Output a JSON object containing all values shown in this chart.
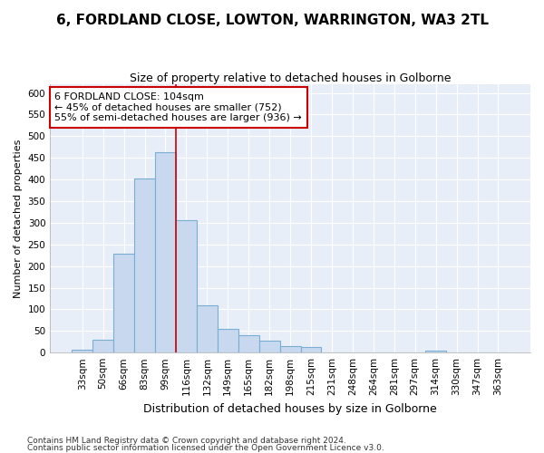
{
  "title": "6, FORDLAND CLOSE, LOWTON, WARRINGTON, WA3 2TL",
  "subtitle": "Size of property relative to detached houses in Golborne",
  "xlabel": "Distribution of detached houses by size in Golborne",
  "ylabel": "Number of detached properties",
  "footnote1": "Contains HM Land Registry data © Crown copyright and database right 2024.",
  "footnote2": "Contains public sector information licensed under the Open Government Licence v3.0.",
  "categories": [
    "33sqm",
    "50sqm",
    "66sqm",
    "83sqm",
    "99sqm",
    "116sqm",
    "132sqm",
    "149sqm",
    "165sqm",
    "182sqm",
    "198sqm",
    "215sqm",
    "231sqm",
    "248sqm",
    "264sqm",
    "281sqm",
    "297sqm",
    "314sqm",
    "330sqm",
    "347sqm",
    "363sqm"
  ],
  "values": [
    7,
    30,
    228,
    403,
    464,
    307,
    110,
    54,
    40,
    28,
    15,
    12,
    0,
    0,
    0,
    0,
    0,
    5,
    0,
    0,
    0
  ],
  "bar_color": "#c8d8ee",
  "bar_edge_color": "#7aafd4",
  "bg_color": "#ffffff",
  "plot_bg_color": "#e8eef8",
  "grid_color": "#ffffff",
  "annotation_text": "6 FORDLAND CLOSE: 104sqm\n← 45% of detached houses are smaller (752)\n55% of semi-detached houses are larger (936) →",
  "vline_bin_index": 4.5,
  "ylim": [
    0,
    620
  ],
  "yticks": [
    0,
    50,
    100,
    150,
    200,
    250,
    300,
    350,
    400,
    450,
    500,
    550,
    600
  ],
  "annotation_box_color": "#ffffff",
  "annotation_box_edge": "#cc0000",
  "vline_color": "#cc0000",
  "title_fontsize": 11,
  "subtitle_fontsize": 9,
  "ylabel_fontsize": 8,
  "xlabel_fontsize": 9,
  "tick_fontsize": 7.5,
  "footnote_fontsize": 6.5,
  "annot_fontsize": 8
}
